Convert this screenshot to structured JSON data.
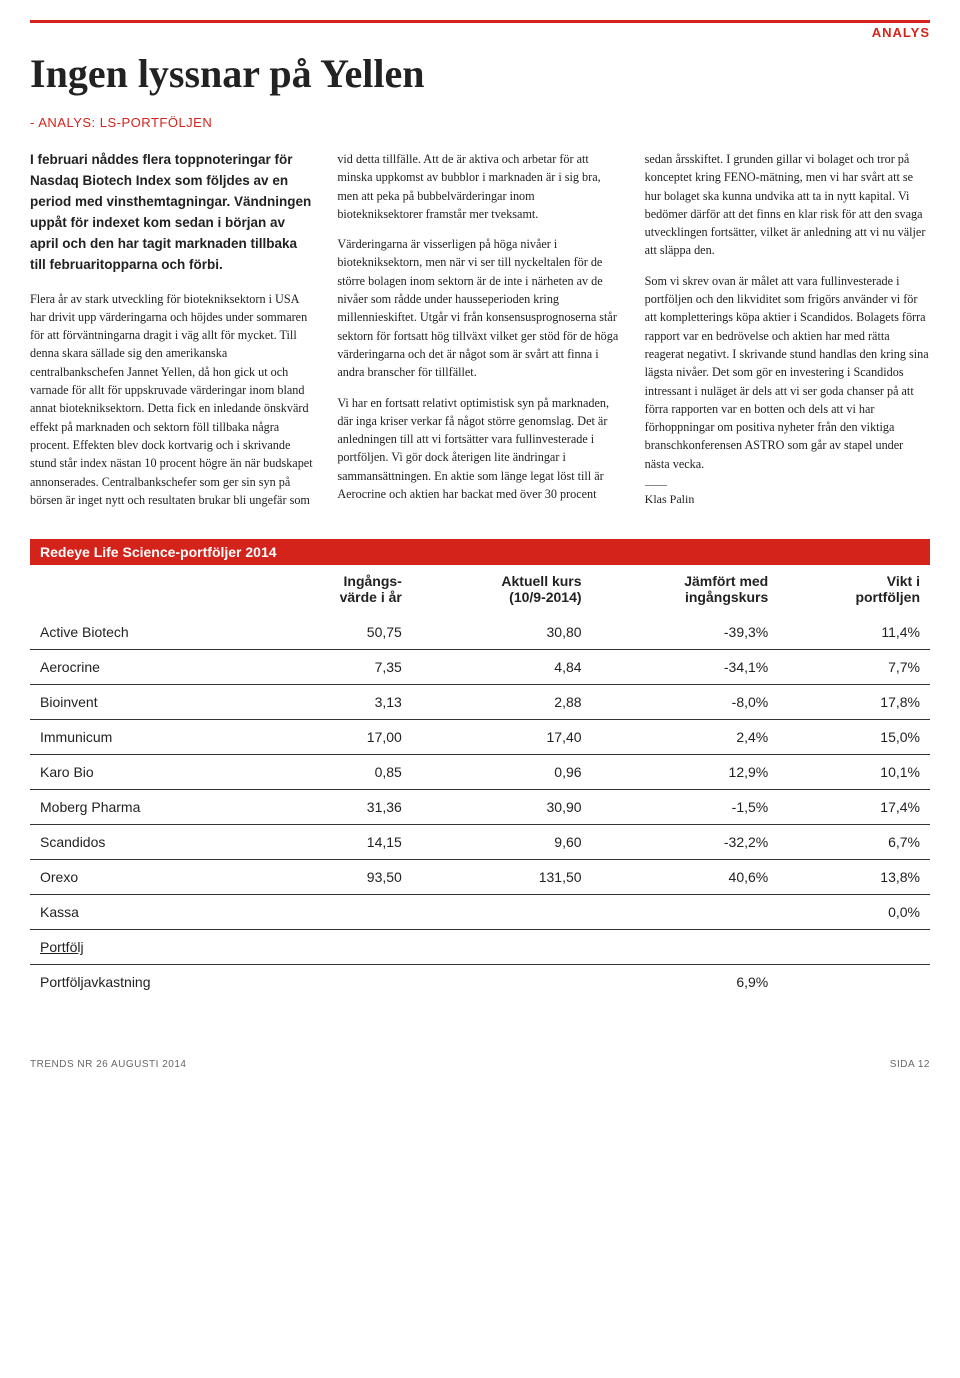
{
  "section_label": "ANALYS",
  "headline": "Ingen lyssnar på Yellen",
  "subheadline": "- ANALYS: LS-PORTFÖLJEN",
  "intro": "I februari nåddes flera toppnoteringar för Nasdaq Biotech Index som följdes av en period med vinsthemtagningar. Vändningen uppåt för indexet kom sedan i början av april och den har tagit marknaden tillbaka till februaritopparna och förbi.",
  "p1": "Flera år av stark utveckling för biotekniksektorn i USA har drivit upp värderingarna och höjdes under sommaren för att förväntningarna dragit i väg allt för mycket. Till denna skara sällade sig den amerikanska centralbankschefen Jannet Yellen, då hon gick ut och varnade för allt för uppskruvade värderingar inom bland annat biotekniksektorn. Detta fick en inledande önskvärd effekt på marknaden och sektorn föll tillbaka några procent. Effekten blev dock kortvarig och i skrivande stund står index nästan 10 procent högre än när budskapet annonserades. Centralbankschefer som ger sin syn på börsen är inget nytt och resultaten brukar bli ungefär som vid detta tillfälle. Att de är aktiva och arbetar för att minska uppkomst av bubblor i marknaden är i sig bra, men att peka på bubbelvärderingar inom biotekniksektorer framstår mer tveksamt.",
  "p2": "Värderingarna är visserligen på höga nivåer i biotekniksektorn, men när vi ser till nyckeltalen för de större bolagen inom sektorn är de inte i närheten av de nivåer som rådde under hausseperioden kring millennieskiftet. Utgår vi från konsensusprognoserna står sektorn för fortsatt hög tillväxt vilket ger stöd för de höga värderingarna och det är något som är svårt att finna i andra branscher för tillfället.",
  "p3": "Vi har en fortsatt relativt optimistisk syn på marknaden, där inga kriser verkar få något större genomslag. Det är anledningen till att vi fortsätter vara fullinvesterade i portföljen. Vi gör dock återigen lite ändringar i sammansättningen. En aktie som länge legat löst till är Aerocrine och aktien har backat med över 30 procent sedan årsskiftet. I grunden gillar vi bolaget och tror på konceptet kring FENO-mätning, men vi har svårt att se hur bolaget ska kunna undvika att ta in nytt kapital. Vi bedömer därför att det finns en klar risk för att den svaga utvecklingen fortsätter, vilket är anledning att vi nu väljer att släppa den.",
  "p4": "Som vi skrev ovan är målet att vara fullinvesterade i portföljen och den likviditet som frigörs använder vi för att kompletterings köpa aktier i Scandidos. Bolagets förra rapport var en bedrövelse och aktien har med rätta reagerat negativt. I skrivande stund handlas den kring sina lägsta nivåer. Det som gör en investering i Scandidos intressant i nuläget är dels att vi ser goda chanser på att förra rapporten var en botten och dels att vi har förhoppningar om positiva nyheter från den viktiga branschkonferensen ASTRO som går av stapel under nästa vecka.",
  "byline": "Klas Palin",
  "table": {
    "title": "Redeye Life Science-portföljer 2014",
    "header_bg": "#d4231a",
    "header_fg": "#ffffff",
    "columns": [
      "",
      "Ingångs-\nvärde i år",
      "Aktuell kurs\n(10/9-2014)",
      "Jämfört med\ningångskurs",
      "Vikt i\nportföljen"
    ],
    "rows": [
      [
        "Active Biotech",
        "50,75",
        "30,80",
        "-39,3%",
        "11,4%"
      ],
      [
        "Aerocrine",
        "7,35",
        "4,84",
        "-34,1%",
        "7,7%"
      ],
      [
        "Bioinvent",
        "3,13",
        "2,88",
        "-8,0%",
        "17,8%"
      ],
      [
        "Immunicum",
        "17,00",
        "17,40",
        "2,4%",
        "15,0%"
      ],
      [
        "Karo Bio",
        "0,85",
        "0,96",
        "12,9%",
        "10,1%"
      ],
      [
        "Moberg Pharma",
        "31,36",
        "30,90",
        "-1,5%",
        "17,4%"
      ],
      [
        "Scandidos",
        "14,15",
        "9,60",
        "-32,2%",
        "6,7%"
      ],
      [
        "Orexo",
        "93,50",
        "131,50",
        "40,6%",
        "13,8%"
      ]
    ],
    "kassa": [
      "Kassa",
      "",
      "",
      "",
      "0,0%"
    ],
    "portfolj": [
      "Portfölj",
      "",
      "",
      "",
      ""
    ],
    "avkastning": [
      "Portföljavkastning",
      "",
      "",
      "6,9%",
      ""
    ]
  },
  "footer_left": "TRENDS NR 26 AUGUSTI 2014",
  "footer_right": "SIDA 12",
  "colors": {
    "accent": "#d4231a",
    "text": "#222222",
    "bg": "#ffffff",
    "footer": "#666666",
    "border": "#333333"
  },
  "typography": {
    "headline_fontsize": 40,
    "body_fontsize": 12.2,
    "table_fontsize": 14,
    "footer_fontsize": 10
  }
}
